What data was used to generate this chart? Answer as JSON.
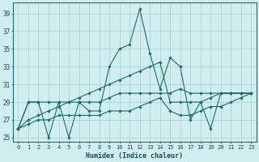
{
  "xlabel": "Humidex (Indice chaleur)",
  "ylabel": "",
  "background_color": "#d0eef0",
  "grid_color": "#b0d8d0",
  "line_color": "#1a6b6b",
  "xlim": [
    -0.5,
    23.5
  ],
  "ylim": [
    24.5,
    40.2
  ],
  "xticks": [
    0,
    1,
    2,
    3,
    4,
    5,
    6,
    7,
    8,
    9,
    10,
    11,
    12,
    13,
    14,
    15,
    16,
    17,
    18,
    19,
    20,
    21,
    22,
    23
  ],
  "yticks": [
    25,
    27,
    29,
    31,
    33,
    35,
    37,
    39
  ],
  "series": {
    "line1": [
      26,
      29,
      29,
      25,
      29,
      25,
      29,
      28,
      28,
      33,
      35,
      35.5,
      39.5,
      34.5,
      30.5,
      34,
      33,
      27,
      29,
      26,
      30,
      30,
      30,
      30
    ],
    "line2": [
      26,
      29,
      29,
      29,
      29,
      29,
      29,
      29,
      29,
      29.5,
      30,
      30,
      30,
      30,
      30,
      30,
      30.5,
      30,
      30,
      30,
      30,
      30,
      30,
      30
    ],
    "line3": [
      26,
      27,
      27.5,
      28,
      28.5,
      29,
      29.5,
      30,
      30.5,
      31,
      31.5,
      32,
      32.5,
      33,
      33.5,
      29,
      29,
      29,
      29,
      29.5,
      30,
      30,
      30,
      30
    ],
    "line4": [
      26,
      26.5,
      27,
      27,
      27.5,
      27.5,
      27.5,
      27.5,
      27.5,
      28,
      28,
      28,
      28.5,
      29,
      29.5,
      28,
      27.5,
      27.5,
      28,
      28.5,
      28.5,
      29,
      29.5,
      30
    ]
  }
}
